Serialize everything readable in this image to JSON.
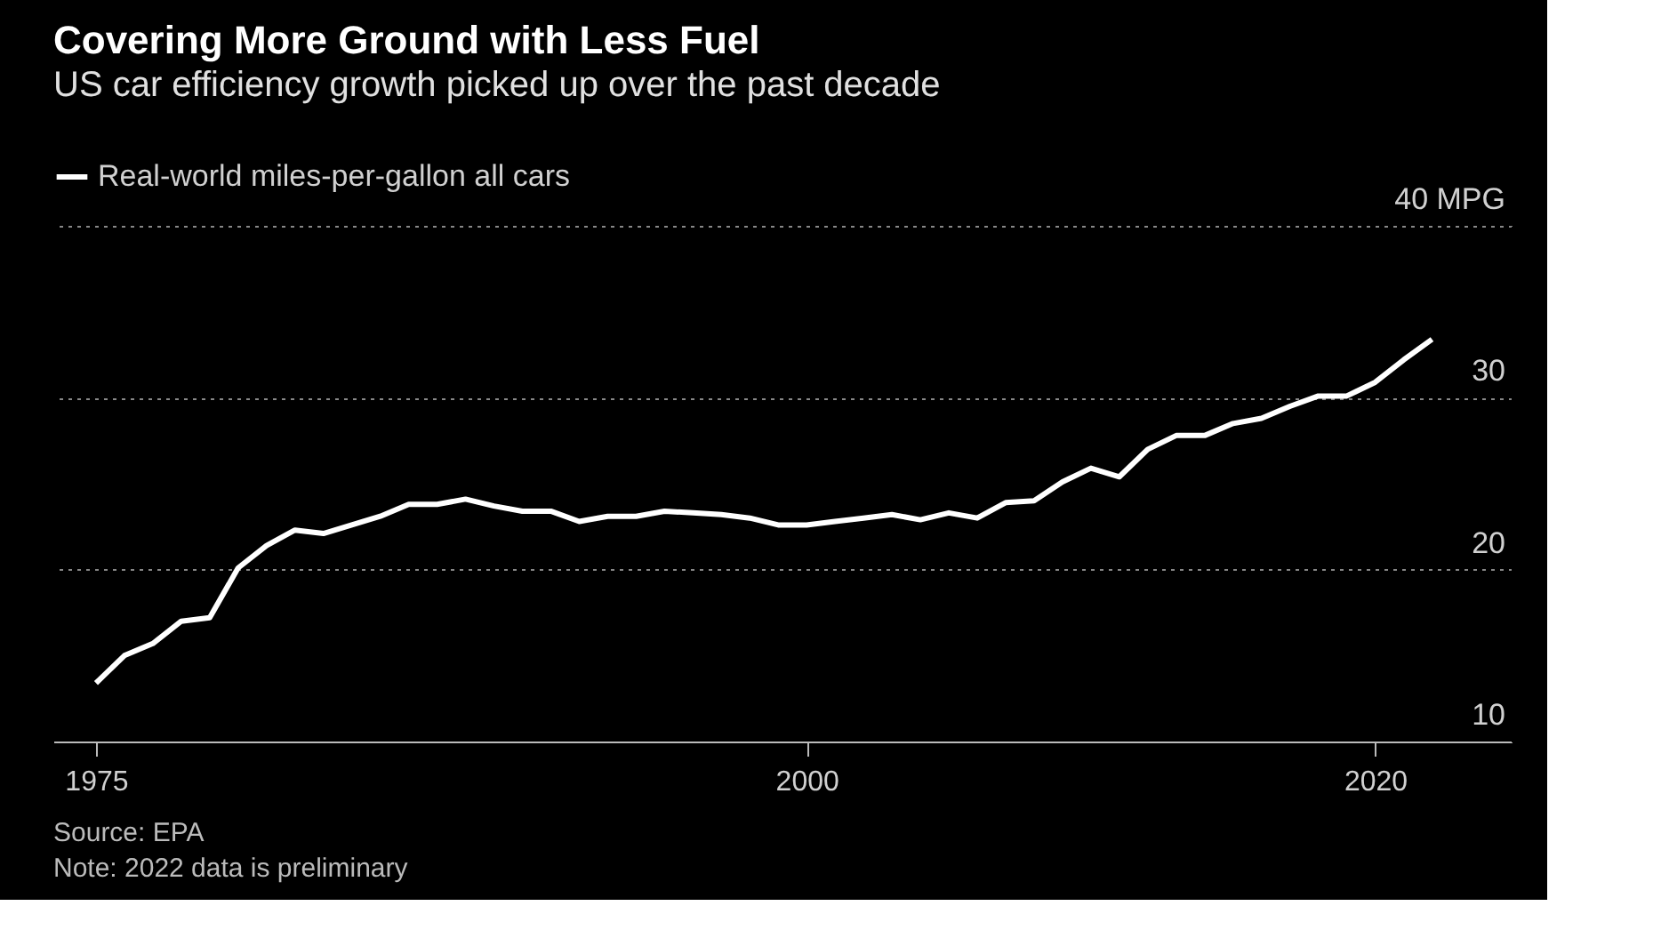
{
  "chart_data": {
    "type": "line",
    "title": "Covering More Ground with Less Fuel",
    "subtitle": "US car efficiency growth picked up over the past decade",
    "x": [
      1975,
      1976,
      1977,
      1978,
      1979,
      1980,
      1981,
      1982,
      1983,
      1984,
      1985,
      1986,
      1987,
      1988,
      1989,
      1990,
      1991,
      1992,
      1993,
      1994,
      1995,
      1996,
      1997,
      1998,
      1999,
      2000,
      2001,
      2002,
      2003,
      2004,
      2005,
      2006,
      2007,
      2008,
      2009,
      2010,
      2011,
      2012,
      2013,
      2014,
      2015,
      2016,
      2017,
      2018,
      2019,
      2020,
      2021,
      2022
    ],
    "series": [
      {
        "name": "Real-world miles-per-gallon all cars",
        "color": "#ffffff",
        "values": [
          13.4,
          15.0,
          15.7,
          17.0,
          17.2,
          20.1,
          21.4,
          22.3,
          22.1,
          22.6,
          23.1,
          23.8,
          23.8,
          24.1,
          23.7,
          23.4,
          23.4,
          22.8,
          23.1,
          23.1,
          23.4,
          23.3,
          23.2,
          23.0,
          22.6,
          22.6,
          22.8,
          23.0,
          23.2,
          22.9,
          23.3,
          23.0,
          23.9,
          24.0,
          25.1,
          25.9,
          25.4,
          27.0,
          27.8,
          27.8,
          28.5,
          28.8,
          29.5,
          30.1,
          30.1,
          30.9,
          32.2,
          33.4
        ]
      }
    ],
    "xlim": [
      1973.5,
      2024.8
    ],
    "xticks": [
      1975,
      2000,
      2020
    ],
    "ylim": [
      10,
      40
    ],
    "yticks": [
      10,
      20,
      30,
      {
        "value": 40,
        "label": "40 MPG"
      }
    ],
    "grid": "y",
    "legend": "top left",
    "line_style": "solid",
    "marker": "none",
    "annotations": [
      "Source: EPA",
      "Note: 2022 data is preliminary"
    ]
  }
}
